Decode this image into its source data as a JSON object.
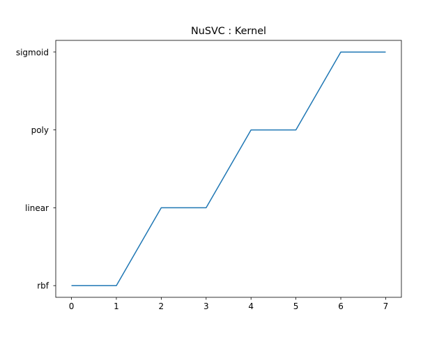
{
  "chart_data": {
    "type": "line",
    "title": "NuSVC : Kernel",
    "xlabel": "",
    "ylabel": "",
    "x": [
      0,
      1,
      2,
      3,
      4,
      5,
      6,
      7
    ],
    "y_categories": [
      "rbf",
      "linear",
      "poly",
      "sigmoid"
    ],
    "series": [
      {
        "values": [
          "rbf",
          "rbf",
          "linear",
          "linear",
          "poly",
          "poly",
          "sigmoid",
          "sigmoid"
        ],
        "color": "#1f77b4"
      }
    ],
    "x_ticks": [
      "0",
      "1",
      "2",
      "3",
      "4",
      "5",
      "6",
      "7"
    ],
    "xlim": [
      -0.35,
      7.35
    ],
    "grid": false,
    "legend": "none"
  }
}
